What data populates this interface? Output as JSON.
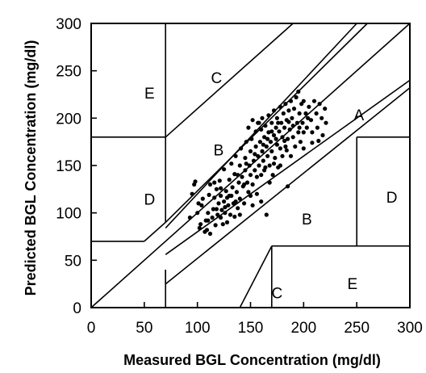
{
  "chart_data": {
    "type": "scatter",
    "title": "",
    "xlabel": "Measured BGL Concentration (mg/dl)",
    "ylabel": "Predicted BGL Concentration (mg/dl)",
    "xlim": [
      0,
      300
    ],
    "ylim": [
      0,
      300
    ],
    "xticks": [
      0,
      50,
      100,
      150,
      200,
      250,
      300
    ],
    "yticks": [
      0,
      50,
      100,
      150,
      200,
      250,
      300
    ],
    "grid": false,
    "legend": "none",
    "zone_labels": [
      {
        "label": "A",
        "x": 252,
        "y": 202
      },
      {
        "label": "B",
        "x": 120,
        "y": 165
      },
      {
        "label": "B",
        "x": 203,
        "y": 92
      },
      {
        "label": "C",
        "x": 118,
        "y": 241
      },
      {
        "label": "C",
        "x": 175,
        "y": 14
      },
      {
        "label": "D",
        "x": 55,
        "y": 113
      },
      {
        "label": "D",
        "x": 283,
        "y": 115
      },
      {
        "label": "E",
        "x": 55,
        "y": 225
      },
      {
        "label": "E",
        "x": 246,
        "y": 24
      }
    ],
    "boundaries": [
      {
        "name": "zone-c-upper-vertical",
        "points": [
          [
            70,
            180
          ],
          [
            70,
            300
          ]
        ]
      },
      {
        "name": "zone-d-upper-horizontal",
        "points": [
          [
            0,
            180
          ],
          [
            70,
            180
          ]
        ]
      },
      {
        "name": "zone-c-upper-diagonal",
        "points": [
          [
            70,
            180
          ],
          [
            190,
            300
          ]
        ]
      },
      {
        "name": "zone-b-upper-segment-1",
        "points": [
          [
            0,
            70
          ],
          [
            50,
            70
          ]
        ]
      },
      {
        "name": "zone-b-upper-segment-2",
        "points": [
          [
            50,
            70
          ],
          [
            70,
            90
          ]
        ]
      },
      {
        "name": "zone-b-upper-segment-3",
        "points": [
          [
            70,
            90
          ],
          [
            70,
            180
          ]
        ]
      },
      {
        "name": "zone-b-upper-diagonal",
        "points": [
          [
            70,
            90
          ],
          [
            260,
            300
          ]
        ]
      },
      {
        "name": "zone-a-upper",
        "points": [
          [
            70,
            84
          ],
          [
            250,
            300
          ]
        ]
      },
      {
        "name": "identity-line",
        "points": [
          [
            0,
            0
          ],
          [
            300,
            300
          ]
        ]
      },
      {
        "name": "zone-a-lower",
        "points": [
          [
            70,
            56
          ],
          [
            300,
            240
          ]
        ]
      },
      {
        "name": "zone-b-lower-diagonal",
        "points": [
          [
            70,
            25
          ],
          [
            300,
            232
          ]
        ]
      },
      {
        "name": "zone-b-lower-vertical",
        "points": [
          [
            70,
            0
          ],
          [
            70,
            40
          ]
        ]
      },
      {
        "name": "zone-b-lower-join",
        "points": [
          [
            70,
            40
          ],
          [
            70,
            25
          ]
        ]
      },
      {
        "name": "zone-c-lower-diagonal",
        "points": [
          [
            140,
            0
          ],
          [
            170,
            65
          ]
        ]
      },
      {
        "name": "zone-c-lower-vertical",
        "points": [
          [
            170,
            0
          ],
          [
            170,
            65
          ]
        ]
      },
      {
        "name": "zone-e-lower-horizontal",
        "points": [
          [
            170,
            65
          ],
          [
            300,
            65
          ]
        ]
      },
      {
        "name": "zone-d-right-horizontal",
        "points": [
          [
            250,
            180
          ],
          [
            300,
            180
          ]
        ]
      },
      {
        "name": "zone-d-right-vertical",
        "points": [
          [
            250,
            65
          ],
          [
            250,
            180
          ]
        ]
      }
    ],
    "series": [
      {
        "points": [
          [
            93,
            95
          ],
          [
            95,
            120
          ],
          [
            97,
            130
          ],
          [
            98,
            133
          ],
          [
            100,
            100
          ],
          [
            101,
            110
          ],
          [
            103,
            88
          ],
          [
            104,
            108
          ],
          [
            105,
            115
          ],
          [
            107,
            80
          ],
          [
            108,
            92
          ],
          [
            109,
            82
          ],
          [
            110,
            100
          ],
          [
            111,
            119
          ],
          [
            112,
            78
          ],
          [
            112,
            130
          ],
          [
            114,
            95
          ],
          [
            115,
            104
          ],
          [
            116,
            116
          ],
          [
            117,
            87
          ],
          [
            118,
            125
          ],
          [
            119,
            98
          ],
          [
            120,
            110
          ],
          [
            121,
            134
          ],
          [
            122,
            95
          ],
          [
            122,
            118
          ],
          [
            123,
            103
          ],
          [
            124,
            88
          ],
          [
            125,
            146
          ],
          [
            125,
            112
          ],
          [
            126,
            100
          ],
          [
            127,
            123
          ],
          [
            128,
            90
          ],
          [
            129,
            108
          ],
          [
            130,
            135
          ],
          [
            130,
            118
          ],
          [
            131,
            98
          ],
          [
            132,
            152
          ],
          [
            133,
            127
          ],
          [
            134,
            110
          ],
          [
            135,
            96
          ],
          [
            135,
            141
          ],
          [
            136,
            160
          ],
          [
            137,
            122
          ],
          [
            138,
            105
          ],
          [
            139,
            132
          ],
          [
            140,
            150
          ],
          [
            140,
            115
          ],
          [
            141,
            168
          ],
          [
            142,
            138
          ],
          [
            143,
            128
          ],
          [
            144,
            110
          ],
          [
            145,
            158
          ],
          [
            145,
            145
          ],
          [
            146,
            175
          ],
          [
            147,
            132
          ],
          [
            148,
            122
          ],
          [
            148,
            190
          ],
          [
            149,
            150
          ],
          [
            150,
            140
          ],
          [
            150,
            165
          ],
          [
            151,
            178
          ],
          [
            152,
            130
          ],
          [
            152,
            198
          ],
          [
            153,
            155
          ],
          [
            154,
            145
          ],
          [
            155,
            170
          ],
          [
            155,
            186
          ],
          [
            156,
            120
          ],
          [
            157,
            160
          ],
          [
            157,
            195
          ],
          [
            158,
            150
          ],
          [
            159,
            175
          ],
          [
            160,
            140
          ],
          [
            160,
            188
          ],
          [
            161,
            165
          ],
          [
            161,
            200
          ],
          [
            162,
            155
          ],
          [
            163,
            180
          ],
          [
            163,
            145
          ],
          [
            164,
            192
          ],
          [
            165,
            170
          ],
          [
            165,
            98
          ],
          [
            166,
            160
          ],
          [
            167,
            185
          ],
          [
            167,
            203
          ],
          [
            168,
            150
          ],
          [
            169,
            175
          ],
          [
            170,
            195
          ],
          [
            170,
            165
          ],
          [
            171,
            140
          ],
          [
            172,
            182
          ],
          [
            172,
            208
          ],
          [
            173,
            158
          ],
          [
            174,
            190
          ],
          [
            175,
            172
          ],
          [
            175,
            200
          ],
          [
            176,
            148
          ],
          [
            177,
            186
          ],
          [
            178,
            212
          ],
          [
            178,
            168
          ],
          [
            179,
            195
          ],
          [
            180,
            180
          ],
          [
            180,
            160
          ],
          [
            181,
            205
          ],
          [
            182,
            190
          ],
          [
            183,
            170
          ],
          [
            183,
            215
          ],
          [
            184,
            198
          ],
          [
            185,
            178
          ],
          [
            185,
            128
          ],
          [
            186,
            208
          ],
          [
            187,
            188
          ],
          [
            188,
            160
          ],
          [
            188,
            218
          ],
          [
            189,
            200
          ],
          [
            190,
            180
          ],
          [
            190,
            192
          ],
          [
            191,
            210
          ],
          [
            192,
            170
          ],
          [
            193,
            222
          ],
          [
            194,
            195
          ],
          [
            195,
            185
          ],
          [
            195,
            228
          ],
          [
            196,
            205
          ],
          [
            197,
            175
          ],
          [
            198,
            215
          ],
          [
            199,
            195
          ],
          [
            200,
            185
          ],
          [
            200,
            218
          ],
          [
            202,
            205
          ],
          [
            203,
            190
          ],
          [
            205,
            212
          ],
          [
            207,
            198
          ],
          [
            208,
            185
          ],
          [
            210,
            218
          ],
          [
            212,
            205
          ],
          [
            213,
            190
          ],
          [
            215,
            215
          ],
          [
            217,
            200
          ],
          [
            218,
            182
          ],
          [
            220,
            210
          ],
          [
            221,
            195
          ],
          [
            158,
            195
          ],
          [
            162,
            172
          ],
          [
            166,
            178
          ],
          [
            170,
            186
          ],
          [
            174,
            178
          ],
          [
            176,
            195
          ],
          [
            182,
            176
          ],
          [
            186,
            196
          ],
          [
            154,
            162
          ],
          [
            146,
            152
          ],
          [
            138,
            140
          ],
          [
            132,
            118
          ],
          [
            126,
            106
          ],
          [
            118,
            104
          ],
          [
            110,
            92
          ],
          [
            102,
            84
          ],
          [
            144,
            130
          ],
          [
            150,
            118
          ],
          [
            156,
            138
          ],
          [
            164,
            148
          ],
          [
            168,
            132
          ],
          [
            172,
            152
          ],
          [
            178,
            150
          ],
          [
            184,
            166
          ],
          [
            140,
            98
          ],
          [
            136,
            112
          ],
          [
            128,
            116
          ],
          [
            122,
            126
          ],
          [
            116,
            132
          ],
          [
            160,
            112
          ],
          [
            152,
            108
          ],
          [
            196,
            190
          ],
          [
            204,
            200
          ],
          [
            208,
            174
          ],
          [
            214,
            176
          ],
          [
            200,
            168
          ]
        ]
      }
    ]
  }
}
